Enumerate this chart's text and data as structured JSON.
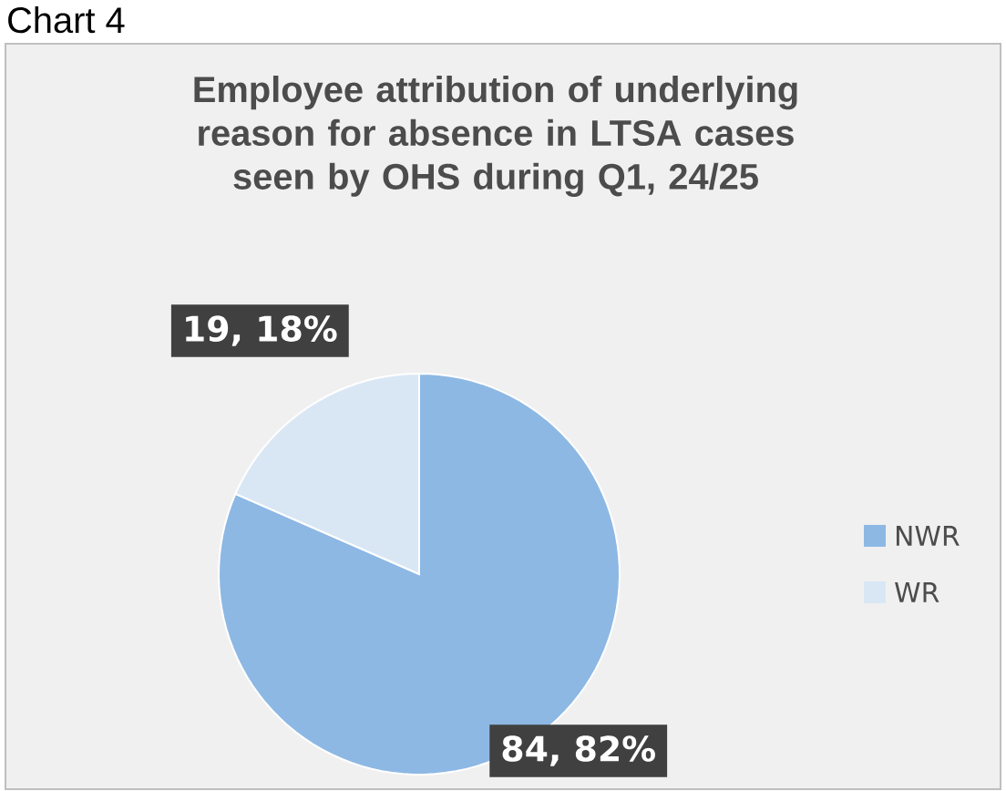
{
  "chart_data": {
    "type": "pie",
    "title": "Employee attribution of underlying reason for absence in LTSA cases seen by OHS during Q1, 24/25",
    "categories": [
      "NWR",
      "WR"
    ],
    "values": [
      84,
      19
    ],
    "value_labels": [
      "84, 82%",
      "19, 18%"
    ],
    "colors": [
      "#8db8e4",
      "#d9e7f5"
    ],
    "legend": "right",
    "annotations": [
      "Chart 4"
    ]
  }
}
